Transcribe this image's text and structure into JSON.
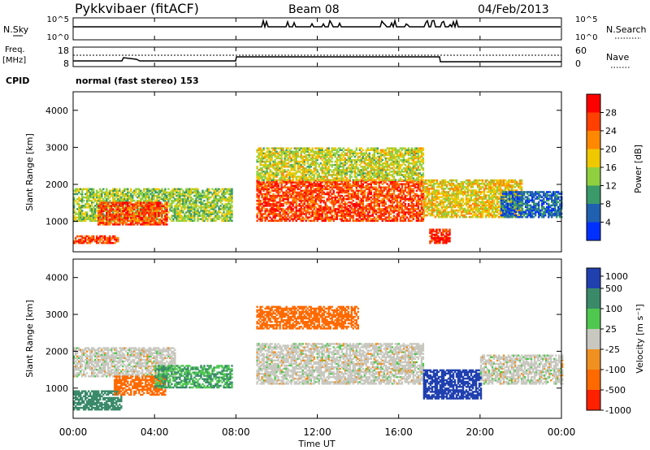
{
  "header": {
    "title": "Pykkvibaer (fitACF)",
    "beam": "Beam 08",
    "date": "04/Feb/2013"
  },
  "sky_panel": {
    "left_label": "N.Sky",
    "right_label": "N.Search",
    "left_ticks": [
      "10^5",
      "10^0"
    ],
    "right_ticks": [
      "10^5",
      "10^0"
    ]
  },
  "freq_panel": {
    "left_label_top": "Freq.",
    "left_label_unit": "[MHz]",
    "right_label": "Nave",
    "left_ticks": [
      "18",
      "8"
    ],
    "right_ticks": [
      "60",
      "0"
    ]
  },
  "cpid": {
    "label": "CPID",
    "text": "normal (fast stereo) 153"
  },
  "axes": {
    "ylabel": "Slant Range [km]",
    "yticks": [
      "4000",
      "3000",
      "2000",
      "1000"
    ],
    "xlabel": "Time UT",
    "xticks": [
      "00:00",
      "04:00",
      "08:00",
      "12:00",
      "16:00",
      "20:00",
      "00:00"
    ]
  },
  "power_colorbar": {
    "label": "Power [dB]",
    "ticks": [
      "28",
      "24",
      "20",
      "16",
      "12",
      "8",
      "4"
    ],
    "colors": [
      "#ff0000",
      "#ff4000",
      "#ff8800",
      "#f0c800",
      "#90d040",
      "#3a9a6a",
      "#2060b0",
      "#0030ff"
    ]
  },
  "velocity_colorbar": {
    "label": "Velocity [m s⁻¹]",
    "ticks": [
      "1000",
      "500",
      "100",
      "25",
      "-25",
      "-100",
      "-500",
      "-1000"
    ],
    "colors": [
      "#2040b0",
      "#3a8a6a",
      "#50c850",
      "#c8c8c0",
      "#f09020",
      "#ff6a00",
      "#ff2000"
    ]
  },
  "chart_data": [
    {
      "type": "heatmap",
      "name": "Power",
      "x": "Time UT (hours)",
      "ylim": [
        180,
        4500
      ],
      "xlim": [
        0,
        24
      ],
      "regions": [
        {
          "t": [
            0.0,
            7.8
          ],
          "r": [
            1000,
            1900
          ],
          "value_db": 14
        },
        {
          "t": [
            1.2,
            4.6
          ],
          "r": [
            900,
            1500
          ],
          "value_db": 26
        },
        {
          "t": [
            0.0,
            2.2
          ],
          "r": [
            400,
            600
          ],
          "value_db": 26
        },
        {
          "t": [
            9.0,
            17.2
          ],
          "r": [
            1000,
            2100
          ],
          "value_db": 26
        },
        {
          "t": [
            9.0,
            17.2
          ],
          "r": [
            2100,
            3000
          ],
          "value_db": 16
        },
        {
          "t": [
            17.2,
            22.0
          ],
          "r": [
            1100,
            2100
          ],
          "value_db": 18
        },
        {
          "t": [
            17.5,
            18.5
          ],
          "r": [
            400,
            800
          ],
          "value_db": 28
        },
        {
          "t": [
            21.0,
            24.0
          ],
          "r": [
            1100,
            1800
          ],
          "value_db": 6
        }
      ]
    },
    {
      "type": "heatmap",
      "name": "Velocity",
      "x": "Time UT (hours)",
      "ylim": [
        180,
        4500
      ],
      "xlim": [
        0,
        24
      ],
      "regions": [
        {
          "t": [
            0.0,
            5.0
          ],
          "r": [
            1300,
            2100
          ],
          "value_ms": 0
        },
        {
          "t": [
            0.0,
            2.4
          ],
          "r": [
            400,
            900
          ],
          "value_ms": 300
        },
        {
          "t": [
            2.0,
            4.5
          ],
          "r": [
            800,
            1300
          ],
          "value_ms": -150
        },
        {
          "t": [
            4.0,
            7.8
          ],
          "r": [
            1000,
            1600
          ],
          "value_ms": 100
        },
        {
          "t": [
            9.0,
            17.2
          ],
          "r": [
            1100,
            2200
          ],
          "value_ms": 0
        },
        {
          "t": [
            9.0,
            14.0
          ],
          "r": [
            2600,
            3200
          ],
          "value_ms": -200
        },
        {
          "t": [
            17.2,
            20.0
          ],
          "r": [
            700,
            1500
          ],
          "value_ms": 800
        },
        {
          "t": [
            20.0,
            24.0
          ],
          "r": [
            1100,
            1900
          ],
          "value_ms": 0
        }
      ]
    }
  ]
}
